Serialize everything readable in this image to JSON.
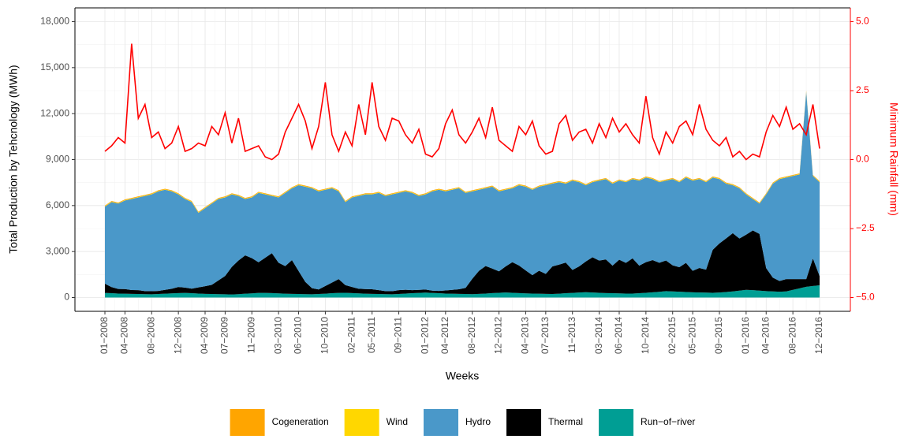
{
  "chart_data": {
    "type": "area",
    "stacked": true,
    "y_label": "Total Production by Tehcnology (MWh)",
    "x_label": "Weeks",
    "y2_label": "Minimum Rainfall (mm)",
    "categories": [
      "01−2008",
      null,
      null,
      "04−2008",
      null,
      null,
      null,
      "08−2008",
      null,
      null,
      null,
      "12−2008",
      null,
      null,
      null,
      "04−2009",
      null,
      null,
      "07−2009",
      null,
      null,
      null,
      "11−2009",
      null,
      null,
      null,
      "03−2010",
      null,
      null,
      "06−2010",
      null,
      null,
      null,
      "10−2010",
      null,
      null,
      null,
      "02−2011",
      null,
      null,
      "05−2011",
      null,
      null,
      null,
      "09−2011",
      null,
      null,
      null,
      "01−2012",
      null,
      null,
      "04−2012",
      null,
      null,
      null,
      "08−2012",
      null,
      null,
      null,
      "12−2012",
      null,
      null,
      null,
      "04−2013",
      null,
      null,
      "07−2013",
      null,
      null,
      null,
      "11−2013",
      null,
      null,
      null,
      "03−2014",
      null,
      null,
      "06−2014",
      null,
      null,
      null,
      "10−2014",
      null,
      null,
      null,
      "02−2015",
      null,
      null,
      "05−2015",
      null,
      null,
      null,
      "09−2015",
      null,
      null,
      null,
      "01−2016",
      null,
      null,
      "04−2016",
      null,
      null,
      null,
      "08−2016",
      null,
      null,
      null,
      "12−2016"
    ],
    "series": [
      {
        "name": "Cogeneration",
        "color": "#FFA500",
        "values": [
          40,
          40,
          40,
          40,
          40,
          40,
          40,
          40,
          40,
          40,
          40,
          40,
          40,
          40,
          40,
          40,
          40,
          40,
          40,
          40,
          40,
          40,
          40,
          40,
          40,
          40,
          40,
          40,
          40,
          40,
          40,
          40,
          40,
          40,
          40,
          40,
          40,
          40,
          40,
          40,
          40,
          40,
          40,
          40,
          40,
          40,
          40,
          40,
          40,
          40,
          40,
          40,
          40,
          40,
          40,
          40,
          40,
          40,
          40,
          40,
          40,
          40,
          40,
          40,
          40,
          40,
          40,
          40,
          40,
          40,
          40,
          40,
          40,
          40,
          40,
          40,
          40,
          40,
          40,
          40,
          40,
          40,
          40,
          40,
          40,
          40,
          40,
          40,
          40,
          40,
          40,
          40,
          40,
          40,
          40,
          40,
          40,
          40,
          40,
          40,
          40,
          40,
          40,
          40,
          40,
          40,
          40,
          40
        ]
      },
      {
        "name": "Wind",
        "color": "#FFD700",
        "values": [
          30,
          30,
          30,
          30,
          30,
          30,
          30,
          30,
          30,
          30,
          30,
          30,
          30,
          30,
          30,
          30,
          30,
          30,
          30,
          30,
          30,
          30,
          30,
          30,
          30,
          30,
          30,
          30,
          30,
          30,
          30,
          30,
          30,
          30,
          30,
          30,
          30,
          30,
          30,
          30,
          30,
          30,
          30,
          30,
          30,
          30,
          30,
          30,
          30,
          30,
          30,
          30,
          30,
          30,
          30,
          30,
          30,
          30,
          30,
          30,
          30,
          30,
          30,
          30,
          30,
          30,
          30,
          30,
          30,
          30,
          30,
          30,
          30,
          30,
          30,
          30,
          30,
          30,
          30,
          30,
          30,
          30,
          30,
          30,
          30,
          30,
          30,
          30,
          30,
          30,
          30,
          30,
          30,
          30,
          30,
          30,
          30,
          30,
          30,
          30,
          30,
          30,
          30,
          30,
          30,
          30,
          30,
          30
        ]
      },
      {
        "name": "Hydro",
        "color": "#4A98C9",
        "values": [
          5030,
          5550,
          5570,
          5780,
          5940,
          6050,
          6210,
          6320,
          6500,
          6530,
          6360,
          6040,
          5780,
          5650,
          4870,
          5090,
          5300,
          5310,
          5120,
          4730,
          4210,
          3680,
          3960,
          4530,
          4130,
          3740,
          4260,
          4780,
          4690,
          5600,
          6210,
          6520,
          6400,
          6280,
          6150,
          5730,
          5420,
          5840,
          6060,
          6180,
          6190,
          6350,
          6210,
          6320,
          6350,
          6420,
          6350,
          6130,
          6210,
          6480,
          6600,
          6470,
          6530,
          6590,
          6200,
          5710,
          5290,
          5070,
          5340,
          5220,
          5000,
          4820,
          5240,
          5460,
          5570,
          5480,
          5790,
          5400,
          5380,
          5150,
          5830,
          5500,
          4980,
          4900,
          5220,
          5240,
          5350,
          5160,
          5270,
          5170,
          5550,
          5520,
          5290,
          5260,
          5210,
          5630,
          5550,
          5570,
          5890,
          5800,
          5710,
          4720,
          4200,
          3570,
          3130,
          3280,
          2630,
          2050,
          1980,
          4810,
          6130,
          6650,
          6630,
          6730,
          6830,
          12230,
          5380,
          6130
        ]
      },
      {
        "name": "Thermal",
        "color": "#000000",
        "values": [
          600,
          400,
          300,
          300,
          250,
          250,
          200,
          200,
          200,
          250,
          300,
          400,
          350,
          300,
          400,
          500,
          600,
          900,
          1200,
          1800,
          2200,
          2500,
          2300,
          2000,
          2300,
          2600,
          2000,
          1800,
          2200,
          1500,
          800,
          400,
          300,
          500,
          700,
          900,
          500,
          400,
          300,
          300,
          300,
          250,
          200,
          200,
          250,
          250,
          200,
          200,
          200,
          150,
          150,
          200,
          250,
          300,
          400,
          1000,
          1500,
          1800,
          1600,
          1400,
          1700,
          2000,
          1800,
          1500,
          1200,
          1500,
          1300,
          1800,
          1900,
          2000,
          1500,
          1700,
          2000,
          2300,
          2100,
          2200,
          1800,
          2200,
          2000,
          2300,
          1800,
          2000,
          2100,
          1900,
          2000,
          1700,
          1600,
          1900,
          1400,
          1600,
          1500,
          2800,
          3200,
          3500,
          3800,
          3400,
          3600,
          3900,
          3700,
          1500,
          900,
          700,
          800,
          700,
          600,
          500,
          1800,
          600
        ]
      },
      {
        "name": "Run−of−river",
        "color": "#009E94",
        "values": [
          300,
          280,
          260,
          250,
          240,
          230,
          220,
          210,
          230,
          250,
          270,
          290,
          300,
          280,
          260,
          240,
          230,
          220,
          210,
          200,
          220,
          250,
          270,
          300,
          300,
          290,
          270,
          250,
          240,
          230,
          220,
          210,
          230,
          250,
          280,
          300,
          310,
          290,
          270,
          250,
          240,
          230,
          220,
          210,
          230,
          260,
          280,
          300,
          320,
          300,
          280,
          260,
          250,
          240,
          230,
          220,
          240,
          260,
          290,
          310,
          330,
          310,
          290,
          270,
          260,
          250,
          240,
          230,
          250,
          280,
          300,
          330,
          350,
          330,
          310,
          290,
          280,
          270,
          260,
          260,
          280,
          310,
          340,
          370,
          420,
          400,
          380,
          360,
          340,
          330,
          320,
          310,
          330,
          360,
          400,
          450,
          500,
          480,
          450,
          420,
          400,
          380,
          400,
          500,
          600,
          700,
          750,
          800
        ]
      }
    ],
    "line_series": {
      "axis": "y2",
      "color": "#FF0000",
      "values": [
        0.3,
        0.5,
        0.8,
        0.6,
        4.2,
        1.5,
        2.0,
        0.8,
        1.0,
        0.4,
        0.6,
        1.2,
        0.3,
        0.4,
        0.6,
        0.5,
        1.2,
        0.9,
        1.7,
        0.6,
        1.5,
        0.3,
        0.4,
        0.5,
        0.1,
        0.0,
        0.2,
        1.0,
        1.5,
        2.0,
        1.4,
        0.4,
        1.2,
        2.8,
        0.9,
        0.3,
        1.0,
        0.5,
        2.0,
        0.9,
        2.8,
        1.2,
        0.7,
        1.5,
        1.4,
        0.9,
        0.6,
        1.1,
        0.2,
        0.1,
        0.4,
        1.3,
        1.8,
        0.9,
        0.6,
        1.0,
        1.5,
        0.8,
        1.9,
        0.7,
        0.5,
        0.3,
        1.2,
        0.9,
        1.4,
        0.5,
        0.2,
        0.3,
        1.3,
        1.6,
        0.7,
        1.0,
        1.1,
        0.6,
        1.3,
        0.8,
        1.5,
        1.0,
        1.3,
        0.9,
        0.6,
        2.3,
        0.8,
        0.2,
        1.0,
        0.6,
        1.2,
        1.4,
        0.9,
        2.0,
        1.1,
        0.7,
        0.5,
        0.8,
        0.1,
        0.3,
        0.0,
        0.2,
        0.1,
        1.0,
        1.6,
        1.2,
        1.9,
        1.1,
        1.3,
        0.9,
        2.0,
        0.4
      ]
    },
    "ylim": [
      -900,
      18900
    ],
    "yticks": [
      0,
      {
        "value": 3000,
        "label": "3,000"
      },
      {
        "value": 6000,
        "label": "6,000"
      },
      {
        "value": 9000,
        "label": "9,000"
      },
      {
        "value": 12000,
        "label": "12,000"
      },
      {
        "value": 15000,
        "label": "15,000"
      },
      {
        "value": 18000,
        "label": "18,000"
      }
    ],
    "y2lim": [
      -5.5,
      5.5
    ],
    "y2ticks": [
      {
        "value": -5,
        "label": "−5.0"
      },
      {
        "value": -2.5,
        "label": "−2.5"
      },
      {
        "value": 0,
        "label": "0.0"
      },
      {
        "value": 2.5,
        "label": "2.5"
      },
      {
        "value": 5,
        "label": "5.0"
      }
    ],
    "grid": true,
    "legend": "bottom"
  }
}
